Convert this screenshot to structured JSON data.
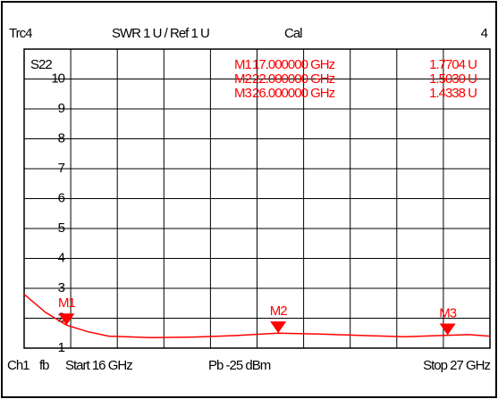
{
  "chart_data": {
    "type": "line",
    "header": {
      "trace": "Trc4",
      "format": "SWR 1 U / Ref 1 U",
      "cal": "Cal",
      "channel": "4"
    },
    "ylabel": "S22",
    "x": [
      16,
      16.5,
      17,
      17.5,
      18,
      19,
      20,
      21,
      22,
      23,
      24,
      25,
      26,
      26.5,
      27
    ],
    "series": [
      {
        "name": "Trc4",
        "color": "#ff0000",
        "values": [
          2.8,
          2.2,
          1.77,
          1.55,
          1.4,
          1.35,
          1.37,
          1.42,
          1.5,
          1.47,
          1.42,
          1.38,
          1.43,
          1.45,
          1.4
        ]
      }
    ],
    "xlim": [
      16,
      27
    ],
    "xticks": [
      16,
      17.1,
      18.2,
      19.3,
      20.4,
      21.5,
      22.6,
      23.7,
      24.8,
      25.9,
      27
    ],
    "ylim": [
      1,
      11
    ],
    "yticks": [
      1,
      2,
      3,
      4,
      5,
      6,
      7,
      8,
      9,
      10
    ],
    "grid": true,
    "markers": [
      {
        "name": "M1",
        "x": 17,
        "freq": "17.000000 GHz",
        "value": 1.7704,
        "value_label": "1.7704 U"
      },
      {
        "name": "M2",
        "x": 22,
        "freq": "22.000000 GHz",
        "value": 1.503,
        "value_label": "1.5030 U"
      },
      {
        "name": "M3",
        "x": 26,
        "freq": "26.000000 GHz",
        "value": 1.4338,
        "value_label": "1.4338 U"
      }
    ],
    "footer": {
      "channel": "Ch1",
      "mode": "fb",
      "start": "Start 16 GHz",
      "power": "Pb -25 dBm",
      "stop": "Stop 27 GHz"
    }
  }
}
